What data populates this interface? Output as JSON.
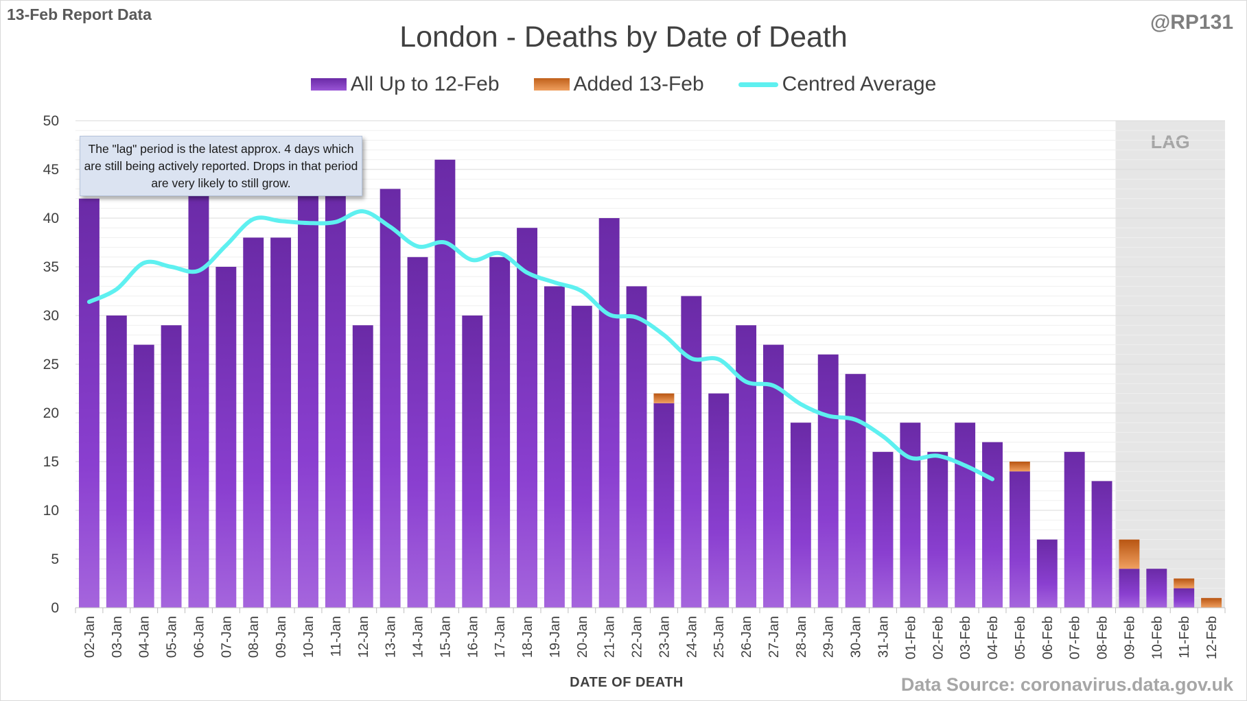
{
  "header": {
    "report_label": "13-Feb Report Data",
    "handle": "@RP131",
    "title": "London - Deaths by Date of Death"
  },
  "legend": [
    {
      "label": "All Up to 12-Feb",
      "color": "#7b33c0",
      "kind": "bar"
    },
    {
      "label": "Added 13-Feb",
      "color": "#e07b2a",
      "kind": "bar"
    },
    {
      "label": "Centred Average",
      "color": "#4df4f4",
      "kind": "line"
    }
  ],
  "annotation": "The \"lag\" period is the latest approx. 4 days which are still being actively reported.  Drops in that period are very likely to still grow.",
  "lag_label": "LAG",
  "footer": {
    "xlabel": "DATE OF DEATH",
    "source": "Data Source: coronavirus.data.gov.uk"
  },
  "colors": {
    "bar_dark": "#6a2aa6",
    "bar_light": "#9a55d6",
    "added": "#d9731f",
    "average": "#5ef0f0",
    "lag_shade": "#e6e6e6"
  },
  "chart_data": {
    "type": "bar",
    "title": "London - Deaths by Date of Death",
    "xlabel": "DATE OF DEATH",
    "ylabel": "",
    "ylim": [
      0,
      50
    ],
    "yticks": [
      0,
      5,
      10,
      15,
      20,
      25,
      30,
      35,
      40,
      45,
      50
    ],
    "grid": true,
    "legend_position": "top",
    "stacked": true,
    "categories": [
      "02-Jan",
      "03-Jan",
      "04-Jan",
      "05-Jan",
      "06-Jan",
      "07-Jan",
      "08-Jan",
      "09-Jan",
      "10-Jan",
      "11-Jan",
      "12-Jan",
      "13-Jan",
      "14-Jan",
      "15-Jan",
      "16-Jan",
      "17-Jan",
      "18-Jan",
      "19-Jan",
      "20-Jan",
      "21-Jan",
      "22-Jan",
      "23-Jan",
      "24-Jan",
      "25-Jan",
      "26-Jan",
      "27-Jan",
      "28-Jan",
      "29-Jan",
      "30-Jan",
      "31-Jan",
      "01-Feb",
      "02-Feb",
      "03-Feb",
      "04-Feb",
      "05-Feb",
      "06-Feb",
      "07-Feb",
      "08-Feb",
      "09-Feb",
      "10-Feb",
      "11-Feb",
      "12-Feb"
    ],
    "series": [
      {
        "name": "All Up to 12-Feb",
        "type": "bar",
        "values": [
          42,
          30,
          27,
          29,
          43,
          35,
          38,
          38,
          43,
          43,
          29,
          43,
          36,
          46,
          30,
          36,
          39,
          33,
          31,
          40,
          33,
          21,
          32,
          22,
          29,
          27,
          19,
          26,
          24,
          16,
          19,
          16,
          19,
          17,
          14,
          7,
          16,
          13,
          4,
          4,
          2,
          0
        ]
      },
      {
        "name": "Added 13-Feb",
        "type": "bar",
        "values": [
          0,
          0,
          0,
          0,
          0,
          0,
          0,
          0,
          0,
          0,
          0,
          0,
          0,
          0,
          0,
          0,
          0,
          0,
          0,
          0,
          0,
          1,
          0,
          0,
          0,
          0,
          0,
          0,
          0,
          0,
          0,
          0,
          0,
          0,
          1,
          0,
          0,
          0,
          3,
          0,
          1,
          1
        ]
      },
      {
        "name": "Centred Average",
        "type": "line",
        "values": [
          31.4,
          32.7,
          35.4,
          35.0,
          34.6,
          37.2,
          39.9,
          39.7,
          39.5,
          39.6,
          40.7,
          39.1,
          37.1,
          37.5,
          35.7,
          36.4,
          34.4,
          33.4,
          32.5,
          30.1,
          29.8,
          28.0,
          25.6,
          25.5,
          23.2,
          22.8,
          20.9,
          19.7,
          19.3,
          17.6,
          15.4,
          15.6,
          14.6,
          13.2,
          null,
          null,
          null,
          null,
          null,
          null,
          null,
          null
        ],
        "x_start_index": 0
      }
    ],
    "lag_period": [
      "09-Feb",
      "12-Feb"
    ]
  }
}
